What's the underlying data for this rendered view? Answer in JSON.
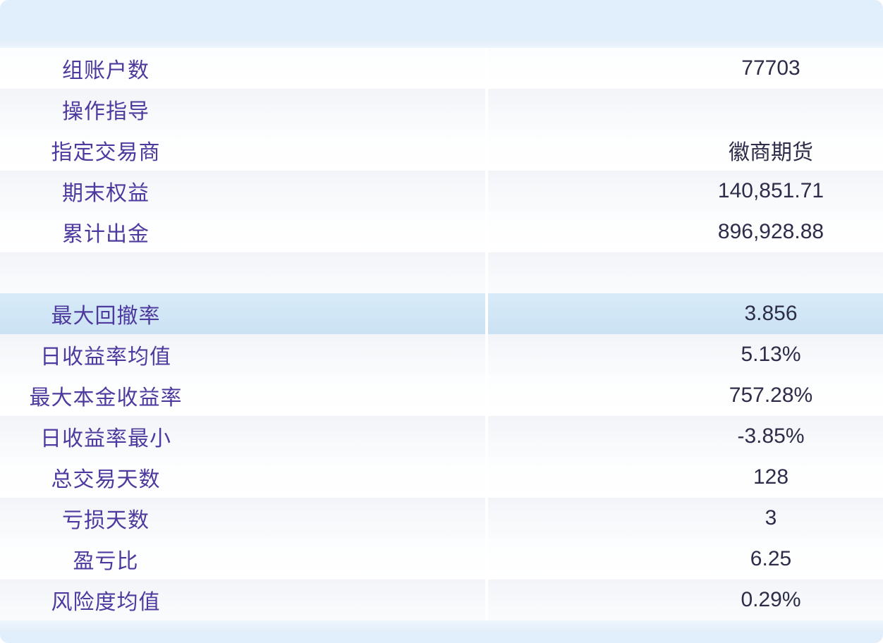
{
  "colors": {
    "band": "#e1eefb",
    "row_light_top": "#fcfdfe",
    "row_light_bot": "#ffffff",
    "row_gray_top": "#f2f4f8",
    "row_gray_bot": "#f8fafc",
    "row_selected_top": "#d8ebf8",
    "row_selected_bot": "#cbe2f4",
    "label_text": "#4e3a9e",
    "value_text": "#2d2d4a"
  },
  "table": {
    "rows": [
      {
        "label": "组账户数",
        "value": "77703",
        "variant": "light",
        "selected": false
      },
      {
        "label": "操作指导",
        "value": "",
        "variant": "gray",
        "selected": false
      },
      {
        "label": "指定交易商",
        "value": "徽商期货",
        "variant": "light",
        "selected": false
      },
      {
        "label": "期末权益",
        "value": "140,851.71",
        "variant": "gray",
        "selected": false
      },
      {
        "label": "累计出金",
        "value": "896,928.88",
        "variant": "light",
        "selected": false
      },
      {
        "label": "",
        "value": "",
        "variant": "gray",
        "selected": false
      },
      {
        "label": "最大回撤率",
        "value": "3.856",
        "variant": "selected",
        "selected": true
      },
      {
        "label": "日收益率均值",
        "value": "5.13%",
        "variant": "gray",
        "selected": false
      },
      {
        "label": "最大本金收益率",
        "value": "757.28%",
        "variant": "light",
        "selected": false
      },
      {
        "label": "日收益率最小",
        "value": "-3.85%",
        "variant": "gray",
        "selected": false
      },
      {
        "label": "总交易天数",
        "value": "128",
        "variant": "light",
        "selected": false
      },
      {
        "label": "亏损天数",
        "value": "3",
        "variant": "gray",
        "selected": false
      },
      {
        "label": "盈亏比",
        "value": "6.25",
        "variant": "light",
        "selected": false
      },
      {
        "label": "风险度均值",
        "value": "0.29%",
        "variant": "gray",
        "selected": false
      }
    ]
  }
}
